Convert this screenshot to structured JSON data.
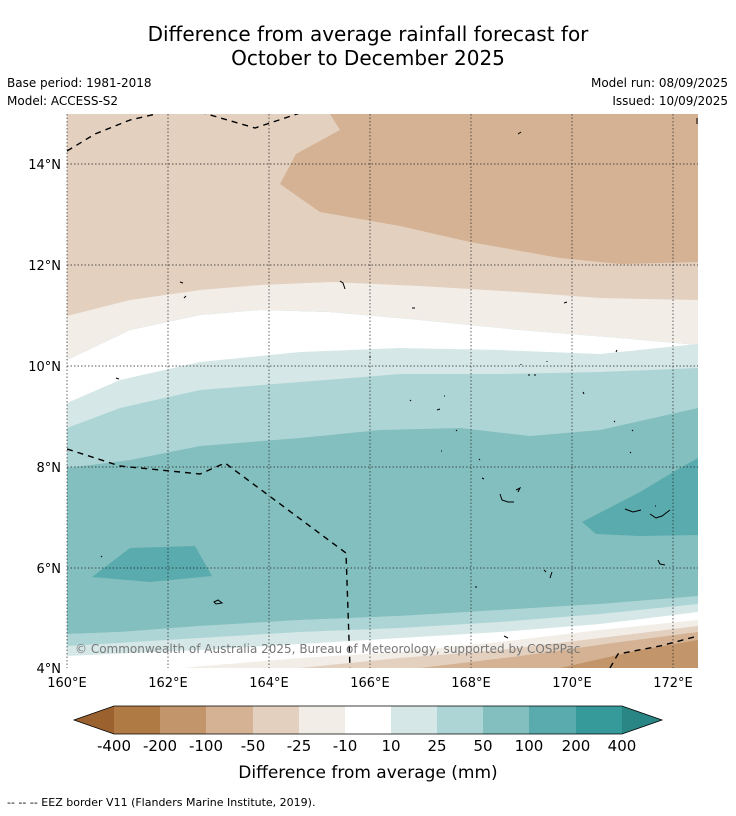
{
  "title": {
    "line1": "Difference from average rainfall forecast for",
    "line2": "October to December 2025"
  },
  "meta": {
    "base_period": "Base period: 1981-2018",
    "model": "Model: ACCESS-S2",
    "model_run": "Model run: 08/09/2025",
    "issued": "Issued: 10/09/2025"
  },
  "map": {
    "copyright": "© Commonwealth of Australia 2025, Bureau of Meteorology, supported by COSPPac",
    "lat_labels": [
      "14°N",
      "12°N",
      "10°N",
      "8°N",
      "6°N",
      "4°N"
    ],
    "lon_labels": [
      "160°E",
      "162°E",
      "164°E",
      "166°E",
      "168°E",
      "170°E",
      "172°E"
    ]
  },
  "colorbar": {
    "title": "Difference from average (mm)",
    "tick_labels": [
      "-400",
      "-200",
      "-100",
      "-50",
      "-25",
      "-10",
      "10",
      "25",
      "50",
      "100",
      "200",
      "400"
    ],
    "colors": [
      "#9b6230",
      "#b07a44",
      "#c2956b",
      "#d4b293",
      "#e3d0bf",
      "#f2ede7",
      "#ffffff",
      "#d5e8e7",
      "#aed5d5",
      "#84bfbf",
      "#5aabad",
      "#369a9a",
      "#2a8585"
    ]
  },
  "footer": {
    "legend_text": "-- -- -- EEZ border V11 (Flanders Marine Institute, 2019)."
  }
}
